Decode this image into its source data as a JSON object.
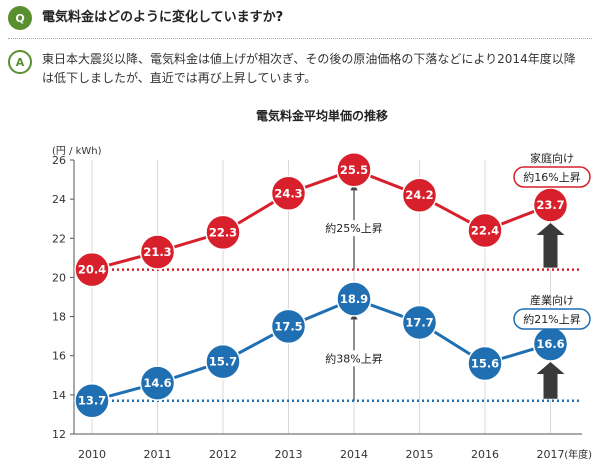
{
  "qa": {
    "q_badge": "Q",
    "question": "電気料金はどのように変化していますか?",
    "a_badge": "A",
    "answer": "東日本大震災以降、電気料金は値上げが相次ぎ、その後の原油価格の下落などにより2014年度以降は低下しましたが、直近では再び上昇しています。"
  },
  "chart_data": {
    "type": "line",
    "title": "電気料金平均単価の推移",
    "ylabel": "(円 / kWh)",
    "xlabel": "(年度)",
    "ylim": [
      12,
      26
    ],
    "yticks": [
      12,
      14,
      16,
      18,
      20,
      22,
      24,
      26
    ],
    "x": [
      "2010",
      "2011",
      "2012",
      "2013",
      "2014",
      "2015",
      "2016",
      "2017"
    ],
    "grid": "vertical",
    "series": [
      {
        "name": "家庭向け",
        "values": [
          20.4,
          21.3,
          22.3,
          24.3,
          25.5,
          24.2,
          22.4,
          23.7
        ],
        "color": "#d7202b"
      },
      {
        "name": "産業向け",
        "values": [
          13.7,
          14.6,
          15.7,
          17.5,
          18.9,
          17.7,
          15.6,
          16.6
        ],
        "color": "#1f6fb2"
      }
    ],
    "annotations": [
      {
        "text": "約25%上昇",
        "series": 0,
        "from": 20.4,
        "to": 25.5,
        "x": "2014"
      },
      {
        "text": "約38%上昇",
        "series": 1,
        "from": 13.7,
        "to": 18.9,
        "x": "2014"
      }
    ],
    "callouts": [
      {
        "series": 0,
        "text": "約16%上昇"
      },
      {
        "series": 1,
        "text": "約21%上昇"
      }
    ]
  }
}
